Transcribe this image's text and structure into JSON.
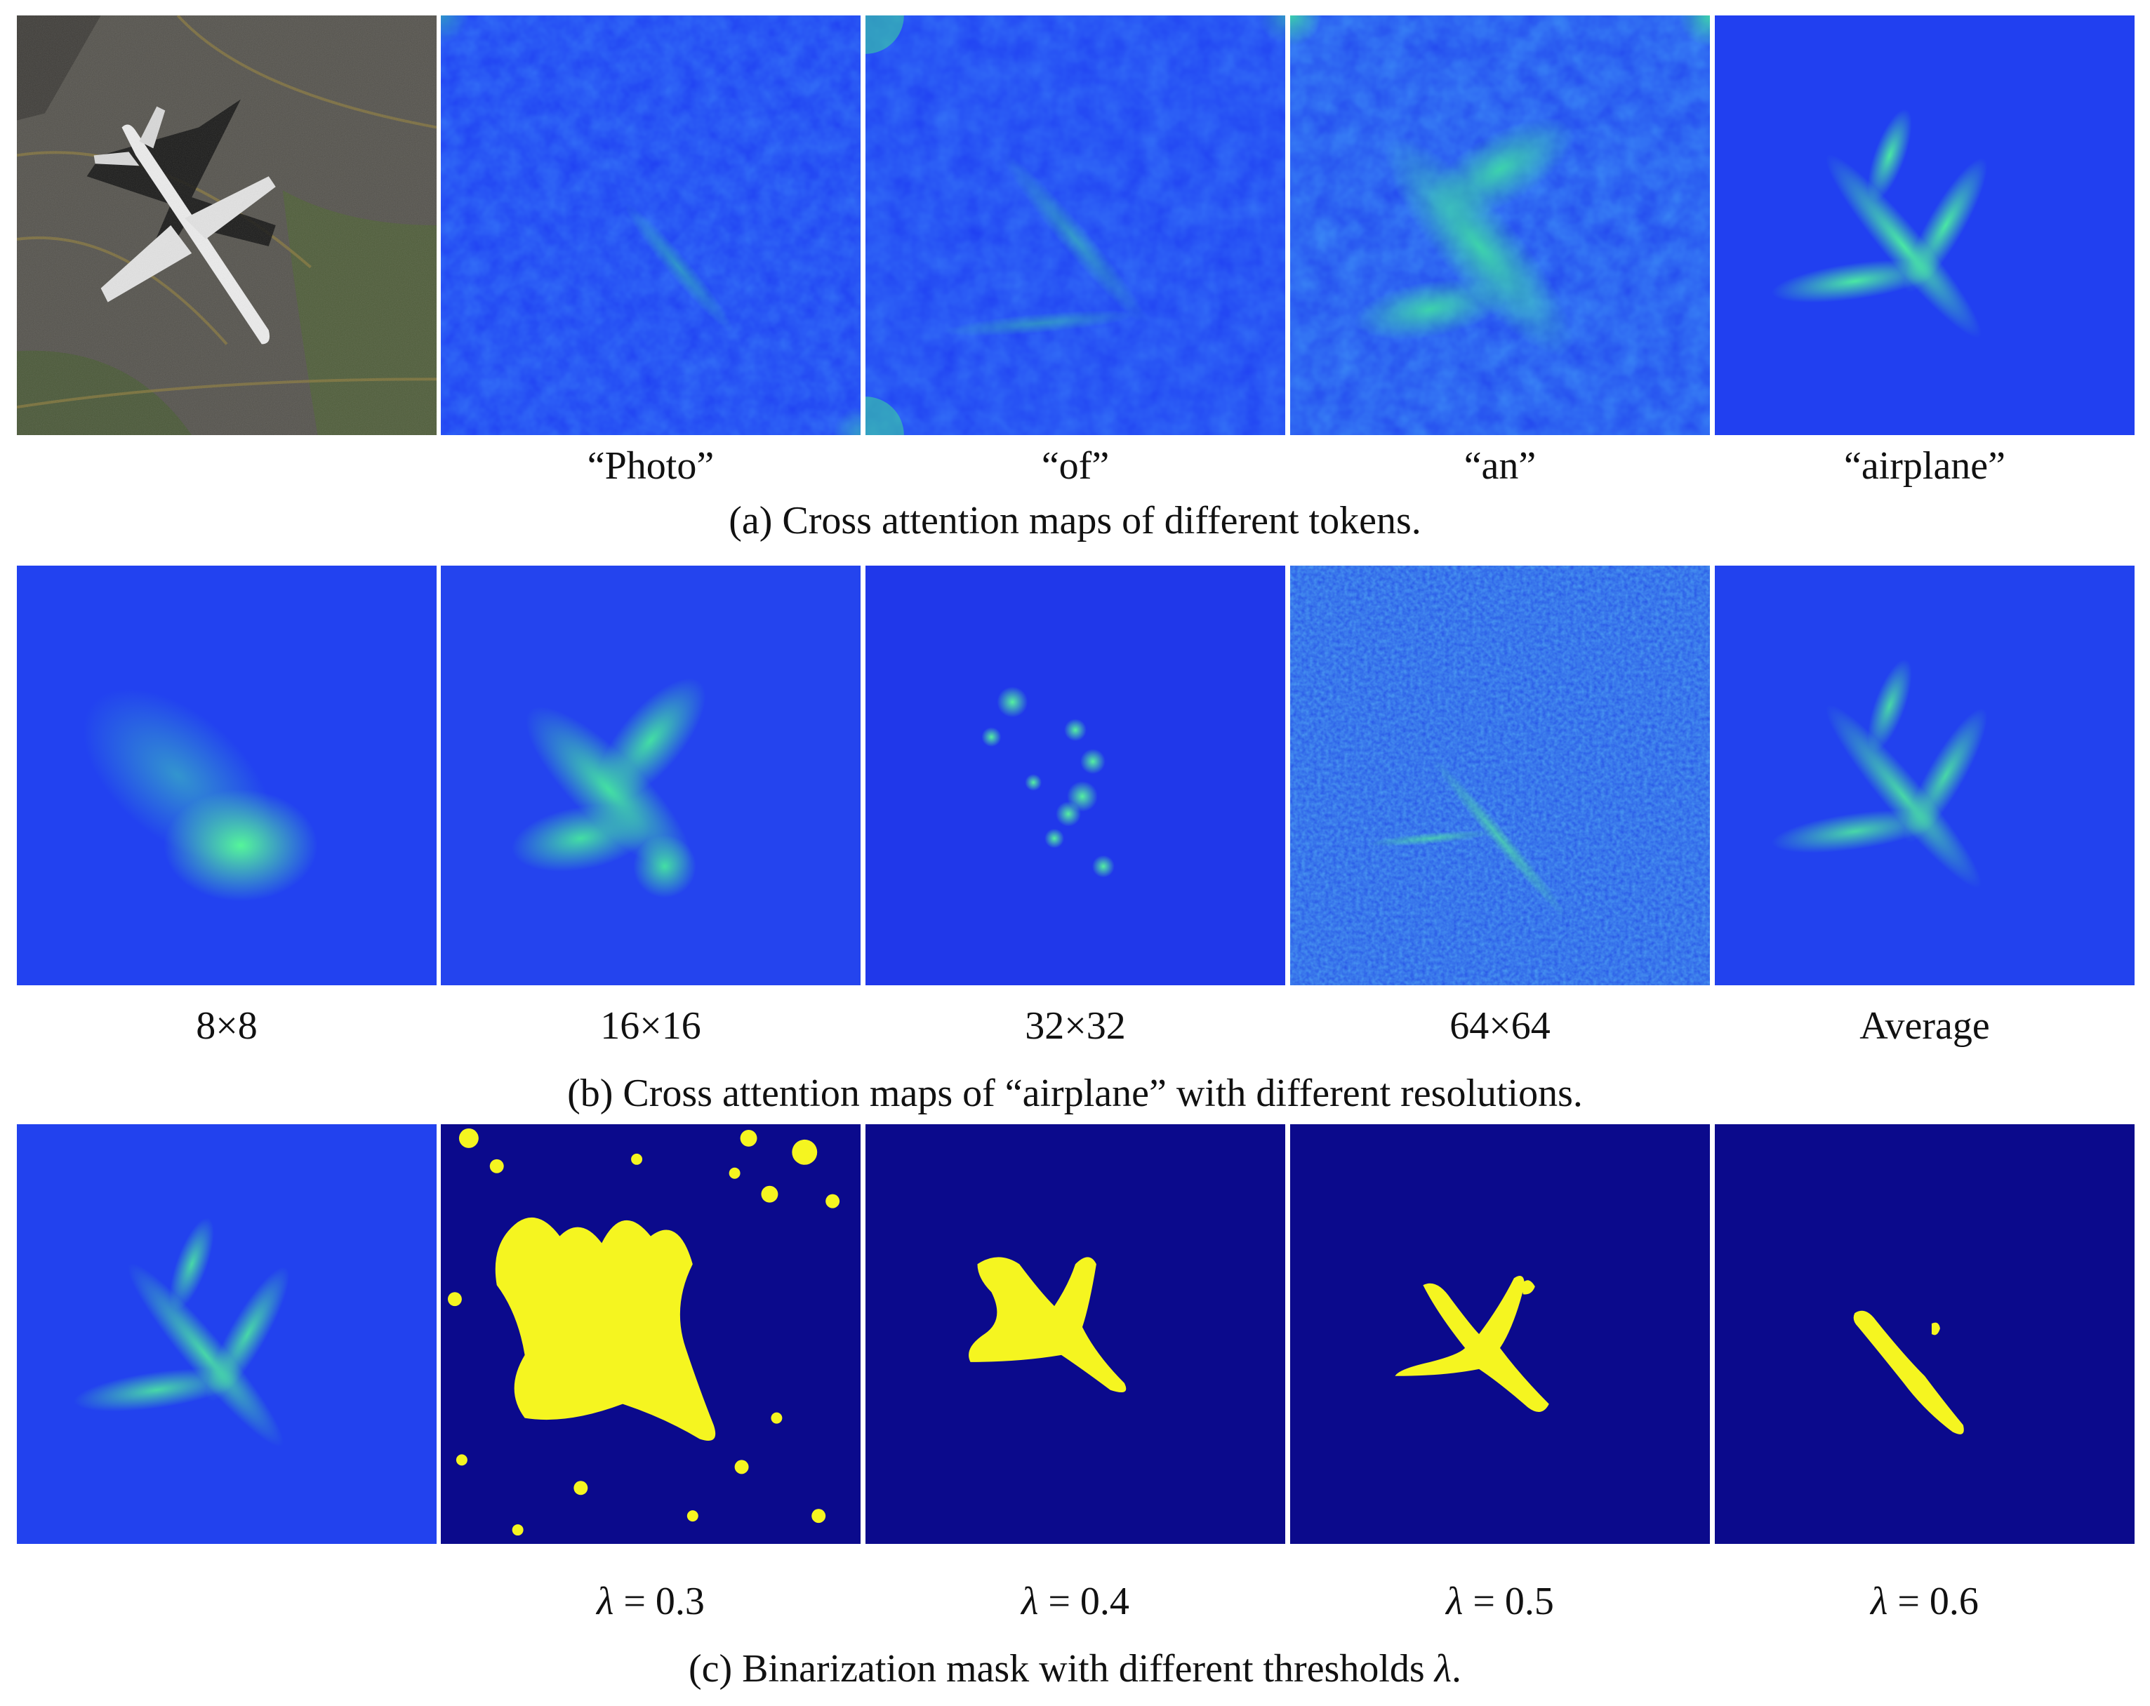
{
  "row_a": {
    "labels": [
      "“Photo”",
      "“of”",
      "“an”",
      "“airplane”"
    ],
    "caption": "(a) Cross attention maps of different tokens."
  },
  "row_b": {
    "labels": [
      "8×8",
      "16×16",
      "32×32",
      "64×64",
      "Average"
    ],
    "caption": "(b) Cross attention maps of “airplane” with different resolutions."
  },
  "row_c": {
    "lambda_symbol": "λ",
    "labels": [
      "= 0.3",
      "= 0.4",
      "= 0.5",
      "= 0.6"
    ],
    "caption": "(c) Binarization mask with different thresholds",
    "caption_suffix": "."
  },
  "colors": {
    "map_background": "#1f3ff2",
    "map_highlight": "#35e0a0",
    "mask_background": "#0b0a8c",
    "mask_foreground": "#f5f520",
    "asphalt": "#56544e",
    "grass": "#4e5e3a"
  }
}
